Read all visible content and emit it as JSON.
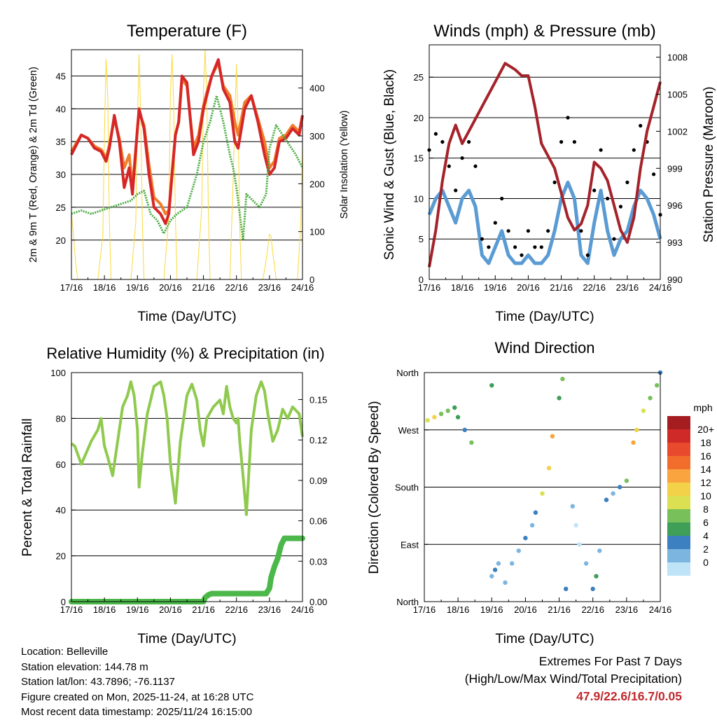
{
  "chart_data": [
    {
      "type": "line",
      "title": "Temperature (F)",
      "xlabel": "Time (Day/UTC)",
      "ylabel": "2m & 9m T (Red, Orange) & 2m Td (Green)",
      "y2label": "Solar Insolation (Yellow)",
      "x_ticks": [
        "17/16",
        "18/16",
        "19/16",
        "20/16",
        "21/16",
        "22/16",
        "23/16",
        "24/16"
      ],
      "xlim": [
        0,
        7
      ],
      "ylim": [
        14,
        49
      ],
      "y_ticks": [
        20,
        25,
        30,
        35,
        40,
        45
      ],
      "y2lim": [
        0,
        480
      ],
      "y2_ticks": [
        0,
        100,
        200,
        300,
        400
      ],
      "series": [
        {
          "name": "2m T",
          "color": "#d62728",
          "axis": "y",
          "x": [
            0,
            0.15,
            0.3,
            0.5,
            0.7,
            0.9,
            1.05,
            1.15,
            1.3,
            1.45,
            1.6,
            1.75,
            1.85,
            2.0,
            2.05,
            2.2,
            2.35,
            2.5,
            2.7,
            2.85,
            2.95,
            3.05,
            3.15,
            3.25,
            3.35,
            3.5,
            3.7,
            3.85,
            4.0,
            4.1,
            4.25,
            4.45,
            4.6,
            4.8,
            4.95,
            5.05,
            5.25,
            5.45,
            5.65,
            5.85,
            6.0,
            6.15,
            6.3,
            6.5,
            6.7,
            6.9,
            7.0
          ],
          "values": [
            33,
            34.5,
            36,
            35.5,
            34,
            33.5,
            32,
            34,
            39,
            35,
            28,
            31,
            27,
            37,
            40,
            37,
            30,
            25,
            24,
            22.5,
            24,
            30,
            36,
            38,
            45,
            44,
            33,
            35,
            40,
            42,
            45,
            47.5,
            43,
            41,
            35,
            34,
            40,
            42,
            38,
            33,
            30,
            31,
            35,
            35.5,
            37,
            36,
            39
          ]
        },
        {
          "name": "9m T",
          "color": "#f07d2a",
          "axis": "y",
          "x": [
            0,
            0.15,
            0.3,
            0.5,
            0.7,
            0.9,
            1.05,
            1.15,
            1.3,
            1.45,
            1.6,
            1.75,
            1.85,
            2.0,
            2.05,
            2.2,
            2.35,
            2.5,
            2.7,
            2.85,
            2.95,
            3.05,
            3.15,
            3.25,
            3.35,
            3.5,
            3.7,
            3.85,
            4.0,
            4.1,
            4.25,
            4.45,
            4.6,
            4.8,
            4.95,
            5.05,
            5.25,
            5.45,
            5.65,
            5.85,
            6.0,
            6.15,
            6.3,
            6.5,
            6.7,
            6.9,
            7.0
          ],
          "values": [
            33.5,
            34.8,
            36,
            35.5,
            34.3,
            33.8,
            32.5,
            34.5,
            38.5,
            35.5,
            31,
            33,
            28,
            37,
            39.5,
            37.5,
            31.5,
            26.5,
            25.5,
            24,
            24.5,
            30.5,
            36,
            38,
            44.5,
            43.5,
            34,
            36,
            40.5,
            42.5,
            45,
            47,
            43.5,
            42,
            38,
            36,
            41,
            42,
            38.5,
            35,
            31,
            32,
            35.5,
            36,
            37.5,
            36.5,
            39
          ]
        },
        {
          "name": "2m Td",
          "color": "#4cad43",
          "axis": "y",
          "x": [
            0,
            0.3,
            0.6,
            0.9,
            1.2,
            1.5,
            1.8,
            2.0,
            2.2,
            2.4,
            2.6,
            2.8,
            3.0,
            3.2,
            3.5,
            3.8,
            4.0,
            4.2,
            4.4,
            4.6,
            4.8,
            4.9,
            5.0,
            5.1,
            5.2,
            5.3,
            5.5,
            5.7,
            5.9,
            6.0,
            6.2,
            6.4,
            6.6,
            6.8,
            6.9,
            7.0
          ],
          "values": [
            24,
            24.5,
            24,
            24.5,
            25,
            25.5,
            26,
            27,
            27.5,
            24,
            23,
            21,
            23,
            24,
            25,
            30,
            35,
            38,
            42,
            38,
            33,
            31,
            28,
            24,
            20,
            27,
            26,
            25,
            27,
            34,
            37.5,
            36,
            34.5,
            33,
            32,
            31
          ]
        },
        {
          "name": "Solar Insolation",
          "color": "#fbd83a",
          "axis": "y2",
          "style": "thin",
          "x": [
            0,
            0.05,
            0.1,
            0.15,
            0.2,
            0.8,
            0.95,
            1.0,
            1.05,
            1.1,
            1.15,
            1.2,
            1.8,
            1.95,
            2.0,
            2.05,
            2.1,
            2.15,
            2.2,
            2.8,
            2.95,
            3.0,
            3.05,
            3.1,
            3.15,
            3.2,
            3.8,
            3.95,
            4.0,
            4.05,
            4.1,
            4.15,
            4.2,
            4.8,
            4.9,
            4.95,
            5.0,
            5.05,
            5.1,
            5.15,
            5.8,
            5.85,
            5.9,
            6.0,
            6.05,
            6.1,
            6.15,
            6.2,
            6.85,
            6.9,
            6.95,
            7.0
          ],
          "values": [
            140,
            100,
            60,
            20,
            0,
            0,
            90,
            300,
            460,
            380,
            120,
            0,
            0,
            120,
            330,
            470,
            340,
            110,
            0,
            0,
            130,
            390,
            470,
            360,
            130,
            0,
            0,
            150,
            400,
            480,
            390,
            140,
            0,
            0,
            210,
            340,
            450,
            320,
            110,
            0,
            0,
            20,
            40,
            95,
            90,
            55,
            30,
            0,
            0,
            60,
            120,
            280
          ]
        }
      ]
    },
    {
      "type": "scatter+line",
      "title": "Winds (mph) & Pressure (mb)",
      "xlabel": "Time (Day/UTC)",
      "ylabel": "Sonic Wind & Gust (Blue, Black)",
      "y2label": "Station Pressure (Maroon)",
      "x_ticks": [
        "17/16",
        "18/16",
        "19/16",
        "20/16",
        "21/16",
        "22/16",
        "23/16",
        "24/16"
      ],
      "xlim": [
        0,
        7
      ],
      "ylim": [
        0,
        29
      ],
      "y_ticks": [
        0,
        5,
        10,
        15,
        20,
        25
      ],
      "y2lim": [
        990,
        1009
      ],
      "y2_ticks": [
        990,
        993,
        996,
        999,
        1002,
        1005,
        1008
      ],
      "series": [
        {
          "name": "Sonic Wind",
          "color": "#5a9bd4",
          "axis": "y",
          "x": [
            0,
            0.2,
            0.4,
            0.6,
            0.8,
            1.0,
            1.2,
            1.4,
            1.6,
            1.8,
            2.0,
            2.2,
            2.4,
            2.6,
            2.8,
            3.0,
            3.2,
            3.4,
            3.6,
            3.8,
            4.0,
            4.2,
            4.4,
            4.6,
            4.8,
            5.0,
            5.2,
            5.4,
            5.6,
            5.8,
            6.0,
            6.2,
            6.4,
            6.6,
            6.8,
            7.0
          ],
          "values": [
            8,
            10,
            11,
            9,
            7,
            10,
            11,
            9,
            3,
            2,
            4,
            6,
            3,
            2,
            2,
            3,
            2,
            2,
            3,
            6,
            10,
            12,
            10,
            3,
            2,
            7,
            11,
            6,
            3,
            5,
            6,
            9,
            11,
            10,
            8,
            5
          ]
        },
        {
          "name": "Sonic Gust",
          "color": "#000000",
          "axis": "y",
          "style": "dots",
          "x": [
            0,
            0.2,
            0.4,
            0.6,
            0.8,
            1.0,
            1.2,
            1.4,
            1.6,
            1.8,
            2.0,
            2.2,
            2.4,
            2.6,
            2.8,
            3.0,
            3.2,
            3.4,
            3.6,
            3.8,
            4.0,
            4.2,
            4.4,
            4.6,
            4.8,
            5.0,
            5.2,
            5.4,
            5.6,
            5.8,
            6.0,
            6.2,
            6.4,
            6.6,
            6.8,
            7.0
          ],
          "values": [
            16,
            18,
            17,
            14,
            11,
            15,
            17,
            14,
            5,
            4,
            7,
            10,
            6,
            4,
            3,
            6,
            4,
            4,
            6,
            12,
            17,
            20,
            17,
            6,
            3,
            11,
            16,
            10,
            5,
            9,
            12,
            16,
            19,
            17,
            13,
            8
          ]
        },
        {
          "name": "Station Pressure",
          "color": "#a5232a",
          "axis": "y2",
          "x": [
            0,
            0.2,
            0.4,
            0.6,
            0.8,
            1.0,
            1.2,
            1.4,
            1.6,
            1.8,
            2.0,
            2.3,
            2.6,
            2.8,
            3.0,
            3.2,
            3.4,
            3.6,
            3.8,
            4.0,
            4.2,
            4.4,
            4.6,
            4.8,
            5.0,
            5.2,
            5.4,
            5.6,
            5.8,
            6.0,
            6.2,
            6.4,
            6.6,
            6.8,
            7.0
          ],
          "values": [
            991,
            994,
            998,
            1001,
            1002.5,
            1001,
            1002,
            1003,
            1004,
            1005,
            1006,
            1007.5,
            1007,
            1006.5,
            1006.5,
            1004,
            1001,
            1000,
            999,
            997,
            995,
            994,
            994.5,
            996,
            999.5,
            999,
            998,
            996,
            994,
            993,
            995,
            999,
            1002,
            1004,
            1006
          ]
        }
      ]
    },
    {
      "type": "line",
      "title": "Relative Humidity (%) & Precipitation (in)",
      "xlabel": "Time (Day/UTC)",
      "ylabel": "Percent & Total Rainfall",
      "x_ticks": [
        "17/16",
        "18/16",
        "19/16",
        "20/16",
        "21/16",
        "22/16",
        "23/16",
        "24/16"
      ],
      "xlim": [
        0,
        7
      ],
      "ylim": [
        0,
        100
      ],
      "y_ticks": [
        0,
        20,
        40,
        60,
        80,
        100
      ],
      "y2lim": [
        0,
        0.17
      ],
      "y2_ticks": [
        "0.00",
        "0.03",
        "0.06",
        "0.09",
        "0.12",
        "0.15"
      ],
      "series": [
        {
          "name": "Relative Humidity",
          "color": "#8fca4e",
          "axis": "y",
          "x": [
            0,
            0.1,
            0.2,
            0.3,
            0.45,
            0.6,
            0.8,
            0.9,
            1.0,
            1.1,
            1.25,
            1.4,
            1.55,
            1.7,
            1.8,
            1.9,
            2.0,
            2.05,
            2.15,
            2.3,
            2.5,
            2.7,
            2.8,
            2.9,
            3.0,
            3.15,
            3.3,
            3.5,
            3.65,
            3.8,
            3.9,
            4.0,
            4.1,
            4.3,
            4.5,
            4.6,
            4.7,
            4.8,
            4.9,
            5.0,
            5.05,
            5.1,
            5.2,
            5.3,
            5.45,
            5.6,
            5.75,
            5.85,
            5.95,
            6.1,
            6.25,
            6.4,
            6.55,
            6.7,
            6.9,
            7.0
          ],
          "values": [
            69,
            68,
            64,
            60,
            65,
            70,
            75,
            80,
            68,
            63,
            55,
            70,
            85,
            90,
            96,
            90,
            75,
            50,
            65,
            82,
            94,
            96,
            90,
            80,
            60,
            43,
            70,
            90,
            95,
            88,
            75,
            68,
            80,
            85,
            88,
            82,
            94,
            85,
            80,
            78,
            80,
            70,
            55,
            38,
            75,
            90,
            96,
            92,
            82,
            70,
            75,
            84,
            80,
            85,
            82,
            72
          ]
        },
        {
          "name": "Total Precipitation",
          "color": "#4cb84a",
          "axis": "y2",
          "style": "thick",
          "x": [
            0,
            4.0,
            4.05,
            4.15,
            4.25,
            5.9,
            6.0,
            6.05,
            6.15,
            6.25,
            6.35,
            6.45,
            7.0
          ],
          "values": [
            0,
            0,
            0.003,
            0.005,
            0.006,
            0.006,
            0.01,
            0.018,
            0.026,
            0.032,
            0.042,
            0.047,
            0.047
          ]
        }
      ]
    },
    {
      "type": "scatter",
      "title": "Wind Direction",
      "xlabel": "Time (Day/UTC)",
      "ylabel": "Direction (Colored By Speed)",
      "x_ticks": [
        "17/16",
        "18/16",
        "19/16",
        "20/16",
        "21/16",
        "22/16",
        "23/16",
        "24/16"
      ],
      "xlim": [
        0,
        7
      ],
      "ylim": [
        0,
        360
      ],
      "y_ticks": [
        "North",
        "East",
        "South",
        "West",
        "North"
      ],
      "y_tick_values": [
        0,
        90,
        180,
        270,
        360
      ],
      "legend": {
        "title": "mph",
        "labels": [
          "20+",
          "18",
          "16",
          "14",
          "12",
          "10",
          "8",
          "6",
          "4",
          "2",
          "0"
        ],
        "colors": [
          "#a51c21",
          "#cf2a27",
          "#e84a2d",
          "#f26d2c",
          "#f9a43f",
          "#f3d149",
          "#dbe053",
          "#77c05a",
          "#3f9e58",
          "#3d80c1",
          "#7cb5e0",
          "#bfe3f7"
        ]
      },
      "x": [
        0.1,
        0.3,
        0.5,
        0.7,
        0.9,
        1.0,
        1.2,
        1.4,
        2.0,
        2.1,
        2.2,
        2.0,
        2.4,
        2.6,
        2.8,
        3.0,
        3.2,
        3.3,
        3.5,
        3.7,
        3.8,
        4.0,
        4.1,
        4.2,
        4.4,
        4.5,
        4.6,
        4.8,
        5.0,
        5.1,
        5.2,
        5.4,
        5.6,
        5.8,
        6.0,
        6.2,
        6.3,
        6.5,
        6.7,
        6.9,
        7.0
      ],
      "values": [
        285,
        290,
        295,
        300,
        305,
        290,
        270,
        250,
        40,
        50,
        60,
        340,
        30,
        60,
        80,
        100,
        120,
        140,
        170,
        210,
        260,
        320,
        350,
        20,
        150,
        120,
        90,
        60,
        20,
        40,
        80,
        160,
        170,
        180,
        190,
        250,
        270,
        300,
        320,
        340,
        360
      ],
      "speeds": [
        10,
        12,
        9,
        8,
        7,
        6,
        5,
        8,
        3,
        4,
        3,
        6,
        2,
        2,
        3,
        4,
        3,
        5,
        10,
        12,
        15,
        6,
        8,
        4,
        2,
        1,
        1,
        2,
        4,
        6,
        3,
        4,
        3,
        5,
        8,
        14,
        12,
        10,
        9,
        8,
        4
      ]
    }
  ],
  "info": {
    "location": "Location: Belleville",
    "elevation": "Station elevation: 144.78 m",
    "latlon": "Station lat/lon: 43.7896; -76.1137",
    "created": "Figure created on Mon, 2025-11-24, at 16:28 UTC",
    "recent": "Most recent data timestamp: 2025/11/24 16:15:00"
  },
  "extremes": {
    "title": "Extremes For Past 7 Days",
    "subtitle": "(High/Low/Max Wind/Total Precipitation)",
    "values": "47.9/22.6/16.7/0.05"
  },
  "colors": {
    "gridline": "#000000",
    "extremes_text": "#c0282d"
  }
}
